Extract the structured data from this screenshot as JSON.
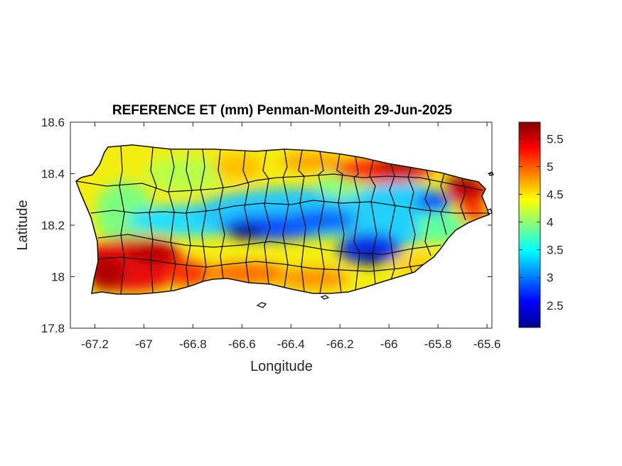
{
  "chart_data": {
    "type": "heatmap",
    "title": "REFERENCE ET (mm) Penman-Monteith 29-Jun-2025",
    "xlabel": "Longitude",
    "ylabel": "Latitude",
    "xlim": [
      -67.3,
      -65.58
    ],
    "ylim": [
      17.8,
      18.6
    ],
    "xticks": [
      -67.2,
      -67,
      -66.8,
      -66.6,
      -66.4,
      -66.2,
      -66,
      -65.8,
      -65.6
    ],
    "xtick_labels": [
      "-67.2",
      "-67",
      "-66.8",
      "-66.6",
      "-66.4",
      "-66.2",
      "-66",
      "-65.8",
      "-65.6"
    ],
    "yticks": [
      17.8,
      18,
      18.2,
      18.4,
      18.6
    ],
    "ytick_labels": [
      "17.8",
      "18",
      "18.2",
      "18.4",
      "18.6"
    ],
    "colorbar": {
      "colormap": "jet",
      "range": [
        2.1,
        5.8
      ],
      "ticks": [
        2.5,
        3,
        3.5,
        4,
        4.5,
        5,
        5.5
      ],
      "tick_labels": [
        "2.5",
        "3",
        "3.5",
        "4",
        "4.5",
        "5",
        "5.5"
      ]
    },
    "grid": false,
    "pattern": {
      "high_regions": [
        "southwest",
        "northeast",
        "north-central coast",
        "south coast"
      ],
      "low_regions": [
        "central cordillera",
        "east-central interior"
      ],
      "value_range_mm": [
        2.1,
        5.8
      ]
    }
  }
}
